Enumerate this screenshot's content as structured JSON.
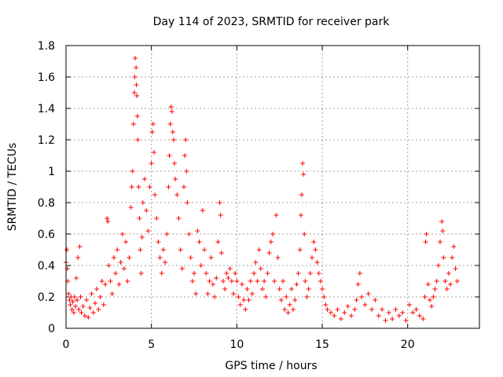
{
  "chart_data": {
    "type": "scatter",
    "title": "Day 114 of 2023, SRMTID for receiver park",
    "xlabel": "GPS time / hours",
    "ylabel": "SRMTID / TECUs",
    "xlim": [
      0,
      24.2
    ],
    "ylim": [
      0,
      1.8
    ],
    "xticks": [
      0,
      5,
      10,
      15,
      20
    ],
    "xtick_labels": [
      "0",
      "5",
      "10",
      "15",
      "20"
    ],
    "yticks": [
      0,
      0.2,
      0.4,
      0.6,
      0.8,
      1.0,
      1.2,
      1.4,
      1.6,
      1.8
    ],
    "ytick_labels": [
      "0",
      "0.2",
      "0.4",
      "0.6",
      "0.8",
      "1",
      "1.2",
      "1.4",
      "1.6",
      "1.8"
    ],
    "grid": true,
    "marker": "+",
    "color": "#ff0000",
    "series": [
      {
        "name": "SRMTID",
        "points": [
          [
            0.0,
            0.42
          ],
          [
            0.05,
            0.5
          ],
          [
            0.08,
            0.38
          ],
          [
            0.1,
            0.3
          ],
          [
            0.15,
            0.22
          ],
          [
            0.2,
            0.18
          ],
          [
            0.25,
            0.15
          ],
          [
            0.3,
            0.2
          ],
          [
            0.35,
            0.12
          ],
          [
            0.4,
            0.17
          ],
          [
            0.45,
            0.1
          ],
          [
            0.5,
            0.2
          ],
          [
            0.55,
            0.14
          ],
          [
            0.6,
            0.32
          ],
          [
            0.65,
            0.18
          ],
          [
            0.7,
            0.45
          ],
          [
            0.75,
            0.12
          ],
          [
            0.8,
            0.52
          ],
          [
            0.85,
            0.2
          ],
          [
            0.9,
            0.1
          ],
          [
            1.0,
            0.14
          ],
          [
            1.1,
            0.08
          ],
          [
            1.2,
            0.18
          ],
          [
            1.3,
            0.07
          ],
          [
            1.4,
            0.13
          ],
          [
            1.5,
            0.22
          ],
          [
            1.6,
            0.1
          ],
          [
            1.7,
            0.16
          ],
          [
            1.8,
            0.25
          ],
          [
            1.9,
            0.12
          ],
          [
            2.0,
            0.2
          ],
          [
            2.1,
            0.3
          ],
          [
            2.2,
            0.15
          ],
          [
            2.3,
            0.28
          ],
          [
            2.4,
            0.7
          ],
          [
            2.45,
            0.68
          ],
          [
            2.5,
            0.4
          ],
          [
            2.6,
            0.3
          ],
          [
            2.7,
            0.22
          ],
          [
            2.8,
            0.45
          ],
          [
            2.9,
            0.35
          ],
          [
            3.0,
            0.5
          ],
          [
            3.1,
            0.28
          ],
          [
            3.2,
            0.42
          ],
          [
            3.3,
            0.6
          ],
          [
            3.4,
            0.38
          ],
          [
            3.5,
            0.55
          ],
          [
            3.6,
            0.3
          ],
          [
            3.7,
            0.45
          ],
          [
            3.8,
            0.77
          ],
          [
            3.85,
            0.9
          ],
          [
            3.9,
            1.0
          ],
          [
            3.95,
            1.3
          ],
          [
            4.0,
            1.5
          ],
          [
            4.02,
            1.6
          ],
          [
            4.05,
            1.72
          ],
          [
            4.1,
            1.66
          ],
          [
            4.12,
            1.55
          ],
          [
            4.15,
            1.48
          ],
          [
            4.18,
            1.35
          ],
          [
            4.2,
            1.2
          ],
          [
            4.25,
            0.9
          ],
          [
            4.3,
            0.7
          ],
          [
            4.35,
            0.5
          ],
          [
            4.4,
            0.35
          ],
          [
            4.45,
            0.58
          ],
          [
            4.5,
            0.8
          ],
          [
            4.6,
            0.95
          ],
          [
            4.7,
            0.75
          ],
          [
            4.8,
            0.62
          ],
          [
            4.9,
            0.9
          ],
          [
            5.0,
            1.05
          ],
          [
            5.05,
            1.25
          ],
          [
            5.1,
            1.3
          ],
          [
            5.15,
            1.12
          ],
          [
            5.2,
            0.85
          ],
          [
            5.3,
            0.7
          ],
          [
            5.4,
            0.55
          ],
          [
            5.5,
            0.45
          ],
          [
            5.6,
            0.35
          ],
          [
            5.7,
            0.5
          ],
          [
            5.8,
            0.42
          ],
          [
            5.9,
            0.6
          ],
          [
            6.0,
            0.9
          ],
          [
            6.05,
            1.1
          ],
          [
            6.1,
            1.3
          ],
          [
            6.15,
            1.41
          ],
          [
            6.2,
            1.38
          ],
          [
            6.25,
            1.25
          ],
          [
            6.3,
            1.2
          ],
          [
            6.35,
            1.05
          ],
          [
            6.4,
            0.95
          ],
          [
            6.5,
            0.85
          ],
          [
            6.6,
            0.7
          ],
          [
            6.7,
            0.5
          ],
          [
            6.8,
            0.38
          ],
          [
            6.9,
            0.9
          ],
          [
            6.95,
            1.1
          ],
          [
            7.0,
            1.2
          ],
          [
            7.05,
            1.0
          ],
          [
            7.1,
            0.8
          ],
          [
            7.2,
            0.6
          ],
          [
            7.3,
            0.45
          ],
          [
            7.4,
            0.3
          ],
          [
            7.5,
            0.35
          ],
          [
            7.6,
            0.22
          ],
          [
            7.7,
            0.62
          ],
          [
            7.8,
            0.55
          ],
          [
            7.9,
            0.4
          ],
          [
            8.0,
            0.75
          ],
          [
            8.1,
            0.5
          ],
          [
            8.2,
            0.35
          ],
          [
            8.3,
            0.22
          ],
          [
            8.4,
            0.3
          ],
          [
            8.5,
            0.45
          ],
          [
            8.6,
            0.28
          ],
          [
            8.7,
            0.2
          ],
          [
            8.8,
            0.32
          ],
          [
            8.9,
            0.55
          ],
          [
            9.0,
            0.8
          ],
          [
            9.05,
            0.72
          ],
          [
            9.1,
            0.48
          ],
          [
            9.2,
            0.3
          ],
          [
            9.3,
            0.25
          ],
          [
            9.4,
            0.35
          ],
          [
            9.5,
            0.32
          ],
          [
            9.6,
            0.38
          ],
          [
            9.7,
            0.3
          ],
          [
            9.8,
            0.22
          ],
          [
            9.9,
            0.35
          ],
          [
            10.0,
            0.3
          ],
          [
            10.1,
            0.2
          ],
          [
            10.2,
            0.15
          ],
          [
            10.3,
            0.28
          ],
          [
            10.4,
            0.18
          ],
          [
            10.5,
            0.12
          ],
          [
            10.6,
            0.25
          ],
          [
            10.7,
            0.18
          ],
          [
            10.8,
            0.3
          ],
          [
            10.9,
            0.22
          ],
          [
            11.0,
            0.35
          ],
          [
            11.1,
            0.42
          ],
          [
            11.2,
            0.3
          ],
          [
            11.3,
            0.5
          ],
          [
            11.4,
            0.38
          ],
          [
            11.5,
            0.25
          ],
          [
            11.6,
            0.3
          ],
          [
            11.7,
            0.2
          ],
          [
            11.8,
            0.35
          ],
          [
            11.9,
            0.48
          ],
          [
            12.0,
            0.55
          ],
          [
            12.1,
            0.6
          ],
          [
            12.2,
            0.3
          ],
          [
            12.3,
            0.72
          ],
          [
            12.4,
            0.45
          ],
          [
            12.5,
            0.25
          ],
          [
            12.6,
            0.18
          ],
          [
            12.7,
            0.3
          ],
          [
            12.8,
            0.12
          ],
          [
            12.9,
            0.2
          ],
          [
            13.0,
            0.1
          ],
          [
            13.1,
            0.15
          ],
          [
            13.2,
            0.25
          ],
          [
            13.3,
            0.12
          ],
          [
            13.4,
            0.18
          ],
          [
            13.5,
            0.28
          ],
          [
            13.6,
            0.35
          ],
          [
            13.7,
            0.5
          ],
          [
            13.75,
            0.72
          ],
          [
            13.8,
            0.85
          ],
          [
            13.85,
            1.05
          ],
          [
            13.9,
            0.98
          ],
          [
            13.95,
            0.6
          ],
          [
            14.0,
            0.3
          ],
          [
            14.1,
            0.2
          ],
          [
            14.2,
            0.25
          ],
          [
            14.3,
            0.35
          ],
          [
            14.4,
            0.45
          ],
          [
            14.5,
            0.55
          ],
          [
            14.6,
            0.5
          ],
          [
            14.7,
            0.42
          ],
          [
            14.8,
            0.35
          ],
          [
            14.9,
            0.3
          ],
          [
            15.0,
            0.25
          ],
          [
            15.1,
            0.2
          ],
          [
            15.2,
            0.15
          ],
          [
            15.3,
            0.12
          ],
          [
            15.5,
            0.1
          ],
          [
            15.7,
            0.08
          ],
          [
            15.9,
            0.12
          ],
          [
            16.1,
            0.06
          ],
          [
            16.3,
            0.1
          ],
          [
            16.5,
            0.14
          ],
          [
            16.7,
            0.08
          ],
          [
            16.9,
            0.12
          ],
          [
            17.0,
            0.18
          ],
          [
            17.1,
            0.28
          ],
          [
            17.2,
            0.35
          ],
          [
            17.3,
            0.2
          ],
          [
            17.5,
            0.15
          ],
          [
            17.7,
            0.22
          ],
          [
            17.9,
            0.12
          ],
          [
            18.1,
            0.18
          ],
          [
            18.3,
            0.08
          ],
          [
            18.5,
            0.12
          ],
          [
            18.7,
            0.05
          ],
          [
            18.9,
            0.1
          ],
          [
            19.1,
            0.06
          ],
          [
            19.3,
            0.12
          ],
          [
            19.5,
            0.08
          ],
          [
            19.7,
            0.1
          ],
          [
            19.9,
            0.05
          ],
          [
            20.1,
            0.15
          ],
          [
            20.3,
            0.1
          ],
          [
            20.5,
            0.12
          ],
          [
            20.7,
            0.08
          ],
          [
            20.9,
            0.06
          ],
          [
            21.0,
            0.2
          ],
          [
            21.05,
            0.55
          ],
          [
            21.1,
            0.6
          ],
          [
            21.2,
            0.28
          ],
          [
            21.3,
            0.18
          ],
          [
            21.4,
            0.14
          ],
          [
            21.5,
            0.2
          ],
          [
            21.6,
            0.25
          ],
          [
            21.7,
            0.3
          ],
          [
            21.8,
            0.4
          ],
          [
            21.9,
            0.55
          ],
          [
            22.0,
            0.68
          ],
          [
            22.05,
            0.62
          ],
          [
            22.1,
            0.45
          ],
          [
            22.2,
            0.3
          ],
          [
            22.3,
            0.25
          ],
          [
            22.4,
            0.35
          ],
          [
            22.5,
            0.28
          ],
          [
            22.6,
            0.45
          ],
          [
            22.7,
            0.52
          ],
          [
            22.8,
            0.38
          ],
          [
            22.9,
            0.3
          ]
        ]
      }
    ]
  }
}
